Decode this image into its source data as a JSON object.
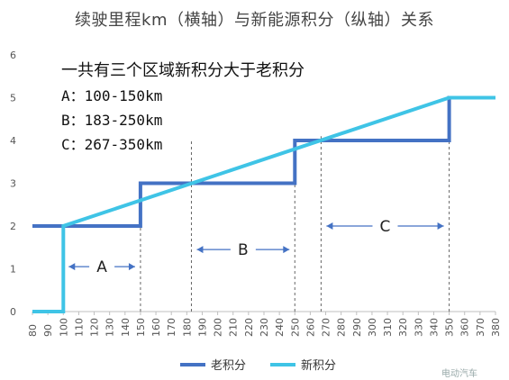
{
  "chart_data": {
    "type": "line",
    "title": "续驶里程km（横轴）与新能源积分（纵轴）关系",
    "xlabel": "",
    "ylabel": "",
    "xlim": [
      80,
      380
    ],
    "ylim": [
      0,
      6
    ],
    "x_ticks": [
      80,
      90,
      100,
      110,
      120,
      130,
      140,
      150,
      160,
      170,
      180,
      190,
      200,
      210,
      220,
      230,
      240,
      250,
      260,
      270,
      280,
      290,
      300,
      310,
      320,
      330,
      340,
      350,
      360,
      370,
      380
    ],
    "y_ticks": [
      0,
      1,
      2,
      3,
      4,
      5,
      6
    ],
    "grid": false,
    "legend_position": "bottom",
    "series": [
      {
        "name": "老积分",
        "color": "#4472c4",
        "style": "step",
        "x": [
          80,
          150,
          150,
          250,
          250,
          350,
          350,
          380
        ],
        "y": [
          2,
          2,
          3,
          3,
          4,
          4,
          5,
          5
        ]
      },
      {
        "name": "新积分",
        "color": "#3fc4e6",
        "style": "line",
        "x": [
          80,
          100,
          100,
          350,
          380
        ],
        "y": [
          0,
          0,
          2,
          5,
          5
        ]
      }
    ],
    "annotations": {
      "heading": "一共有三个区域新积分大于老积分",
      "lines": [
        "A：100-150km",
        "B：183-250km",
        "C：267-350km"
      ]
    },
    "regions": [
      {
        "label": "A",
        "from": 100,
        "to": 150,
        "y": 1.05
      },
      {
        "label": "B",
        "from": 183,
        "to": 250,
        "y": 1.45
      },
      {
        "label": "C",
        "from": 267,
        "to": 350,
        "y": 2.0
      }
    ],
    "guide_lines": [
      100,
      150,
      183,
      250,
      267,
      350
    ],
    "watermark": "电动汽车"
  }
}
